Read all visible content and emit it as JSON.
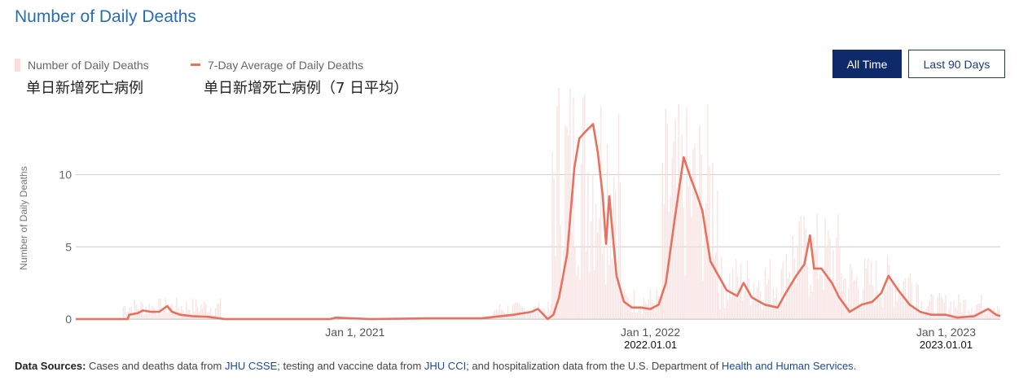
{
  "title": "Number of Daily Deaths",
  "legend": [
    {
      "label": "Number of Daily Deaths",
      "sublabel": "单日新增死亡病例",
      "color": "#f8dede"
    },
    {
      "label": "7-Day Average of Daily Deaths",
      "sublabel": "单日新增死亡病例（7 日平均）",
      "color": "#e8705c"
    }
  ],
  "buttons": {
    "all_time": "All Time",
    "last_90": "Last 90 Days"
  },
  "sources": {
    "prefix": "Data Sources:",
    "t1": " Cases and deaths data from ",
    "l1": "JHU CSSE",
    "t2": "; testing and vaccine data from ",
    "l2": "JHU CCI",
    "t3": "; and hospitalization data from the U.S. Department of ",
    "l3": "Health and Human Services",
    "t4": "."
  },
  "chart_data": {
    "type": "line",
    "title": "Number of Daily Deaths",
    "xlabel": "",
    "ylabel": "Number of Daily Deaths",
    "ylim": [
      0,
      16
    ],
    "yticks": [
      0,
      5,
      10
    ],
    "xlim": [
      "2020-01-22",
      "2023-03-09"
    ],
    "xticks": [
      {
        "date": "2021-01-01",
        "label": "Jan 1, 2021"
      },
      {
        "date": "2022-01-01",
        "label": "Jan 1, 2022"
      },
      {
        "date": "2023-01-01",
        "label": "Jan 1, 2023"
      }
    ],
    "annotations": [
      {
        "date": "2022-01-01",
        "label": "2022.01.01"
      },
      {
        "date": "2023-01-01",
        "label": "2023.01.01"
      }
    ],
    "grid": true,
    "series": [
      {
        "name": "7-Day Average of Daily Deaths",
        "color": "#e8705c",
        "points": [
          [
            "2020-01-22",
            0
          ],
          [
            "2020-03-26",
            0
          ],
          [
            "2020-03-28",
            0.3
          ],
          [
            "2020-04-07",
            0.4
          ],
          [
            "2020-04-14",
            0.6
          ],
          [
            "2020-04-24",
            0.5
          ],
          [
            "2020-05-04",
            0.5
          ],
          [
            "2020-05-14",
            0.9
          ],
          [
            "2020-05-20",
            0.5
          ],
          [
            "2020-05-30",
            0.3
          ],
          [
            "2020-06-14",
            0.2
          ],
          [
            "2020-07-04",
            0.15
          ],
          [
            "2020-07-24",
            0
          ],
          [
            "2020-12-01",
            0
          ],
          [
            "2020-12-08",
            0.1
          ],
          [
            "2021-01-20",
            0
          ],
          [
            "2021-04-02",
            0.05
          ],
          [
            "2021-06-06",
            0.05
          ],
          [
            "2021-07-16",
            0.3
          ],
          [
            "2021-08-07",
            0.5
          ],
          [
            "2021-08-15",
            0.7
          ],
          [
            "2021-08-22",
            0.3
          ],
          [
            "2021-08-27",
            0
          ],
          [
            "2021-09-03",
            0.3
          ],
          [
            "2021-09-10",
            1.5
          ],
          [
            "2021-09-20",
            4.5
          ],
          [
            "2021-09-29",
            10.5
          ],
          [
            "2021-10-05",
            12.5
          ],
          [
            "2021-10-13",
            13.0
          ],
          [
            "2021-10-22",
            13.5
          ],
          [
            "2021-10-28",
            11.5
          ],
          [
            "2021-11-03",
            8.5
          ],
          [
            "2021-11-07",
            5.2
          ],
          [
            "2021-11-11",
            8.5
          ],
          [
            "2021-11-20",
            3.0
          ],
          [
            "2021-11-29",
            1.2
          ],
          [
            "2021-12-09",
            0.8
          ],
          [
            "2021-12-20",
            0.8
          ],
          [
            "2022-01-01",
            0.7
          ],
          [
            "2022-01-11",
            1.0
          ],
          [
            "2022-01-20",
            2.5
          ],
          [
            "2022-01-31",
            7.0
          ],
          [
            "2022-02-11",
            11.2
          ],
          [
            "2022-02-18",
            10.0
          ],
          [
            "2022-02-28",
            8.5
          ],
          [
            "2022-03-06",
            7.5
          ],
          [
            "2022-03-16",
            4.0
          ],
          [
            "2022-03-26",
            3.0
          ],
          [
            "2022-04-05",
            2.0
          ],
          [
            "2022-04-18",
            1.6
          ],
          [
            "2022-04-26",
            2.5
          ],
          [
            "2022-05-06",
            1.5
          ],
          [
            "2022-05-22",
            1.0
          ],
          [
            "2022-06-07",
            0.8
          ],
          [
            "2022-06-17",
            1.8
          ],
          [
            "2022-06-30",
            3.0
          ],
          [
            "2022-07-10",
            3.8
          ],
          [
            "2022-07-17",
            5.8
          ],
          [
            "2022-07-22",
            3.5
          ],
          [
            "2022-07-31",
            3.5
          ],
          [
            "2022-08-13",
            2.5
          ],
          [
            "2022-08-22",
            1.5
          ],
          [
            "2022-09-04",
            0.5
          ],
          [
            "2022-09-19",
            1.0
          ],
          [
            "2022-10-02",
            1.2
          ],
          [
            "2022-10-13",
            1.8
          ],
          [
            "2022-10-22",
            3.0
          ],
          [
            "2022-11-03",
            2.0
          ],
          [
            "2022-11-17",
            1.0
          ],
          [
            "2022-11-30",
            0.5
          ],
          [
            "2022-12-14",
            0.3
          ],
          [
            "2023-01-01",
            0.3
          ],
          [
            "2023-01-15",
            0.1
          ],
          [
            "2023-02-05",
            0.2
          ],
          [
            "2023-02-22",
            0.7
          ],
          [
            "2023-03-04",
            0.3
          ],
          [
            "2023-03-09",
            0.2
          ]
        ]
      },
      {
        "name": "Number of Daily Deaths",
        "color": "#f8dede",
        "periods": [
          {
            "start": "2020-03-20",
            "end": "2020-07-20",
            "level": 1.0
          },
          {
            "start": "2021-06-20",
            "end": "2021-09-01",
            "level": 0.8
          },
          {
            "start": "2021-09-01",
            "end": "2021-11-25",
            "level": 12.0
          },
          {
            "start": "2021-11-25",
            "end": "2022-01-15",
            "level": 1.5
          },
          {
            "start": "2022-01-15",
            "end": "2022-03-25",
            "level": 10.0
          },
          {
            "start": "2022-03-25",
            "end": "2022-06-15",
            "level": 3.0
          },
          {
            "start": "2022-06-15",
            "end": "2022-08-25",
            "level": 5.0
          },
          {
            "start": "2022-08-25",
            "end": "2022-12-01",
            "level": 3.0
          },
          {
            "start": "2022-12-01",
            "end": "2023-03-09",
            "level": 1.2
          }
        ]
      }
    ]
  }
}
